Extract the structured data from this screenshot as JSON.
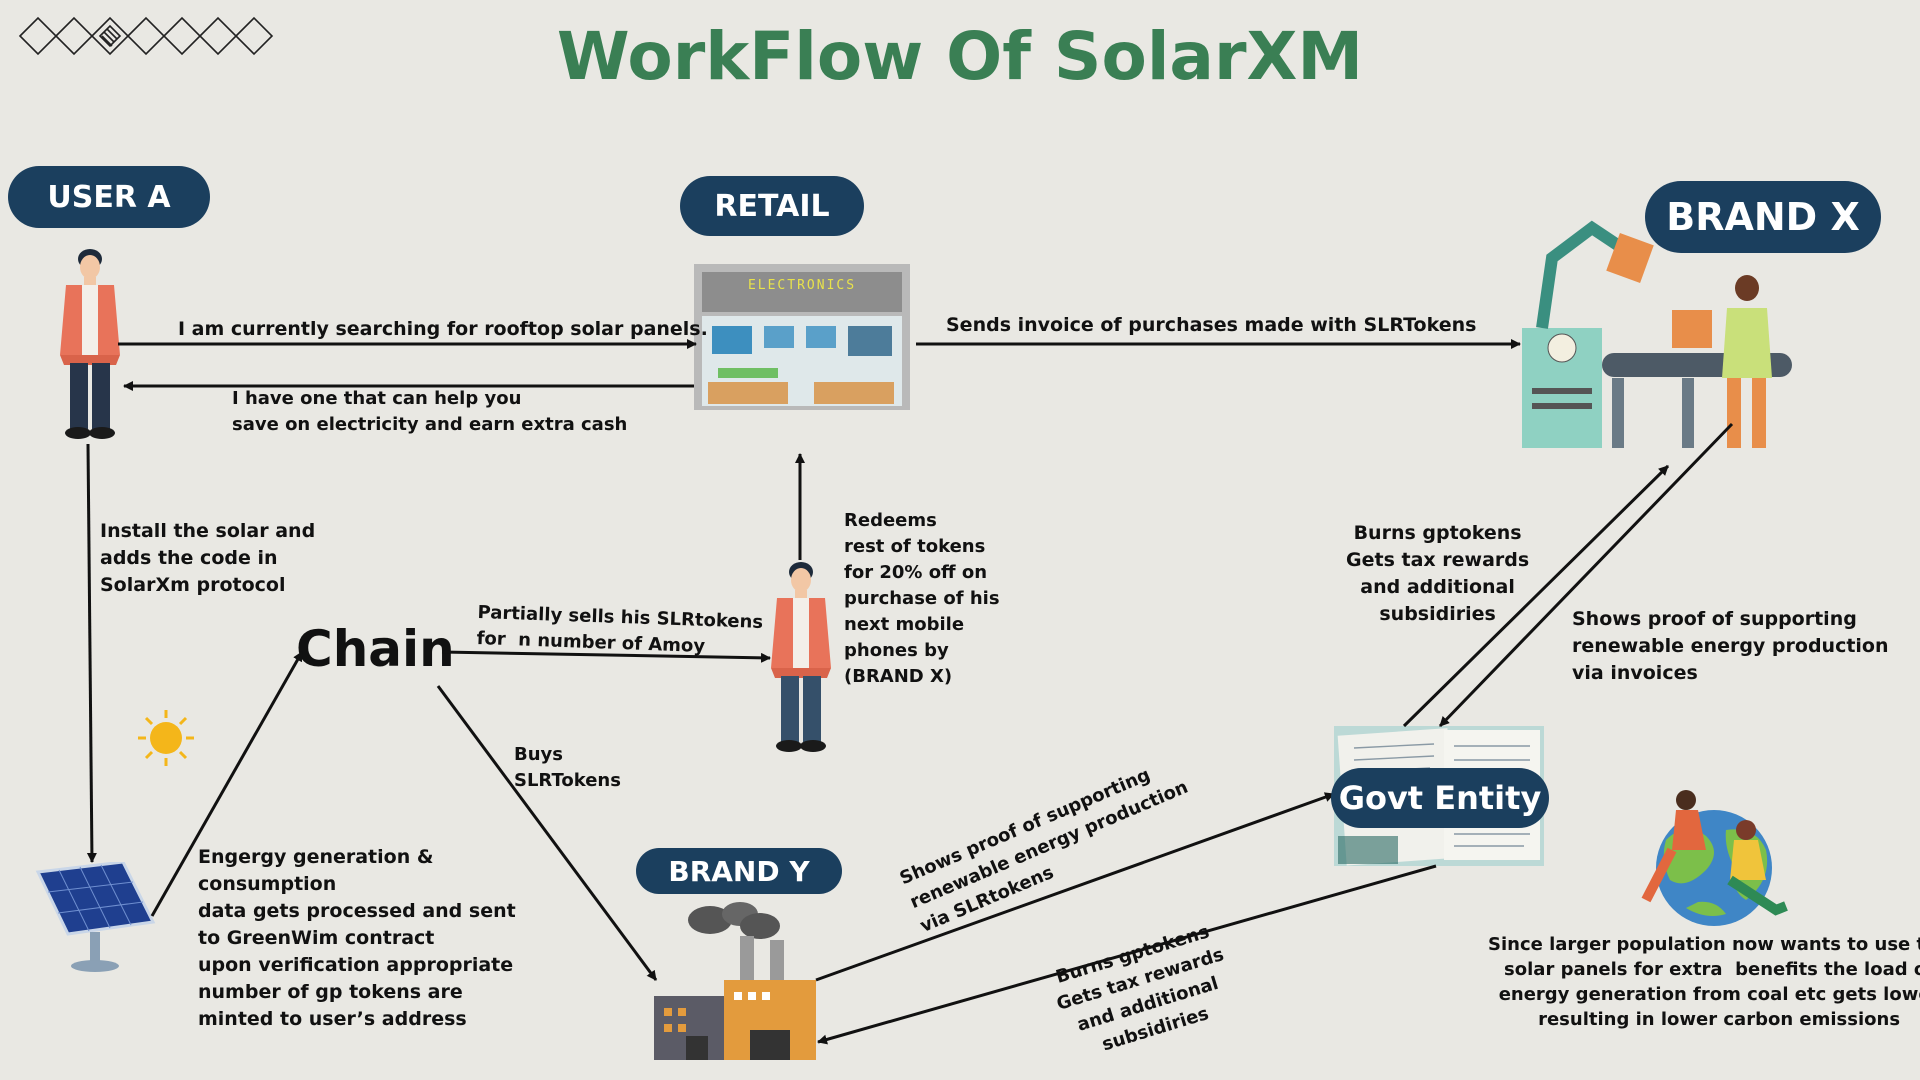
{
  "title": "WorkFlow Of SolarXM",
  "colors": {
    "title": "#3a7f54",
    "pill_bg": "#1b3f5e",
    "pill_text": "#ffffff",
    "background": "#e9e8e3",
    "arrow": "#111111"
  },
  "actors": {
    "user_a": "USER A",
    "retail": "RETAIL",
    "brand_x": "BRAND X",
    "brand_y": "BRAND Y",
    "govt": "Govt Entity",
    "chain": "Chain",
    "store_sign": "ELECTRONICS"
  },
  "icons": [
    "diamond-chain-logo",
    "person-icon",
    "store-icon",
    "factory-robot-icon",
    "solar-panel-icon",
    "sun-icon",
    "factory-icon",
    "tax-document-icon",
    "globe-people-icon"
  ],
  "labels": {
    "user_to_retail": "I am currently searching for rooftop solar panels.",
    "retail_to_user": "I have one that can help you\nsave on electricity and earn extra cash",
    "retail_to_brandx": "Sends invoice of purchases made with SLRTokens",
    "install": "Install the solar and\nadds the code in\nSolarXm protocol",
    "energy": "Engergy generation &\nconsumption\ndata gets processed and sent\nto GreenWim contract\nupon verification appropriate\nnumber of gp tokens are\nminted to user’s address",
    "partial_sell": "Partially sells his SLRtokens\nfor  n number of Amoy",
    "buys": "Buys\nSLRTokens",
    "redeems": "Redeems\nrest of tokens\nfor 20% off on\npurchase of his\nnext mobile\nphones by\n(BRAND X)",
    "burns_upper": "Burns gptokens\nGets tax rewards\nand additional\nsubsidiries",
    "shows_proof_invoices": "Shows proof of supporting\nrenewable energy production\nvia invoices",
    "shows_proof_slr": "Shows proof of supporting\nrenewable energy production\nvia SLRtokens",
    "burns_lower": "Burns gptokens\nGets tax rewards\nand additional\nsubsidiries",
    "carbon_note": "Since larger population now wants to use the\nsolar panels for extra  benefits the load of\nenergy generation from coal etc gets lower\nresulting in lower carbon emissions"
  }
}
